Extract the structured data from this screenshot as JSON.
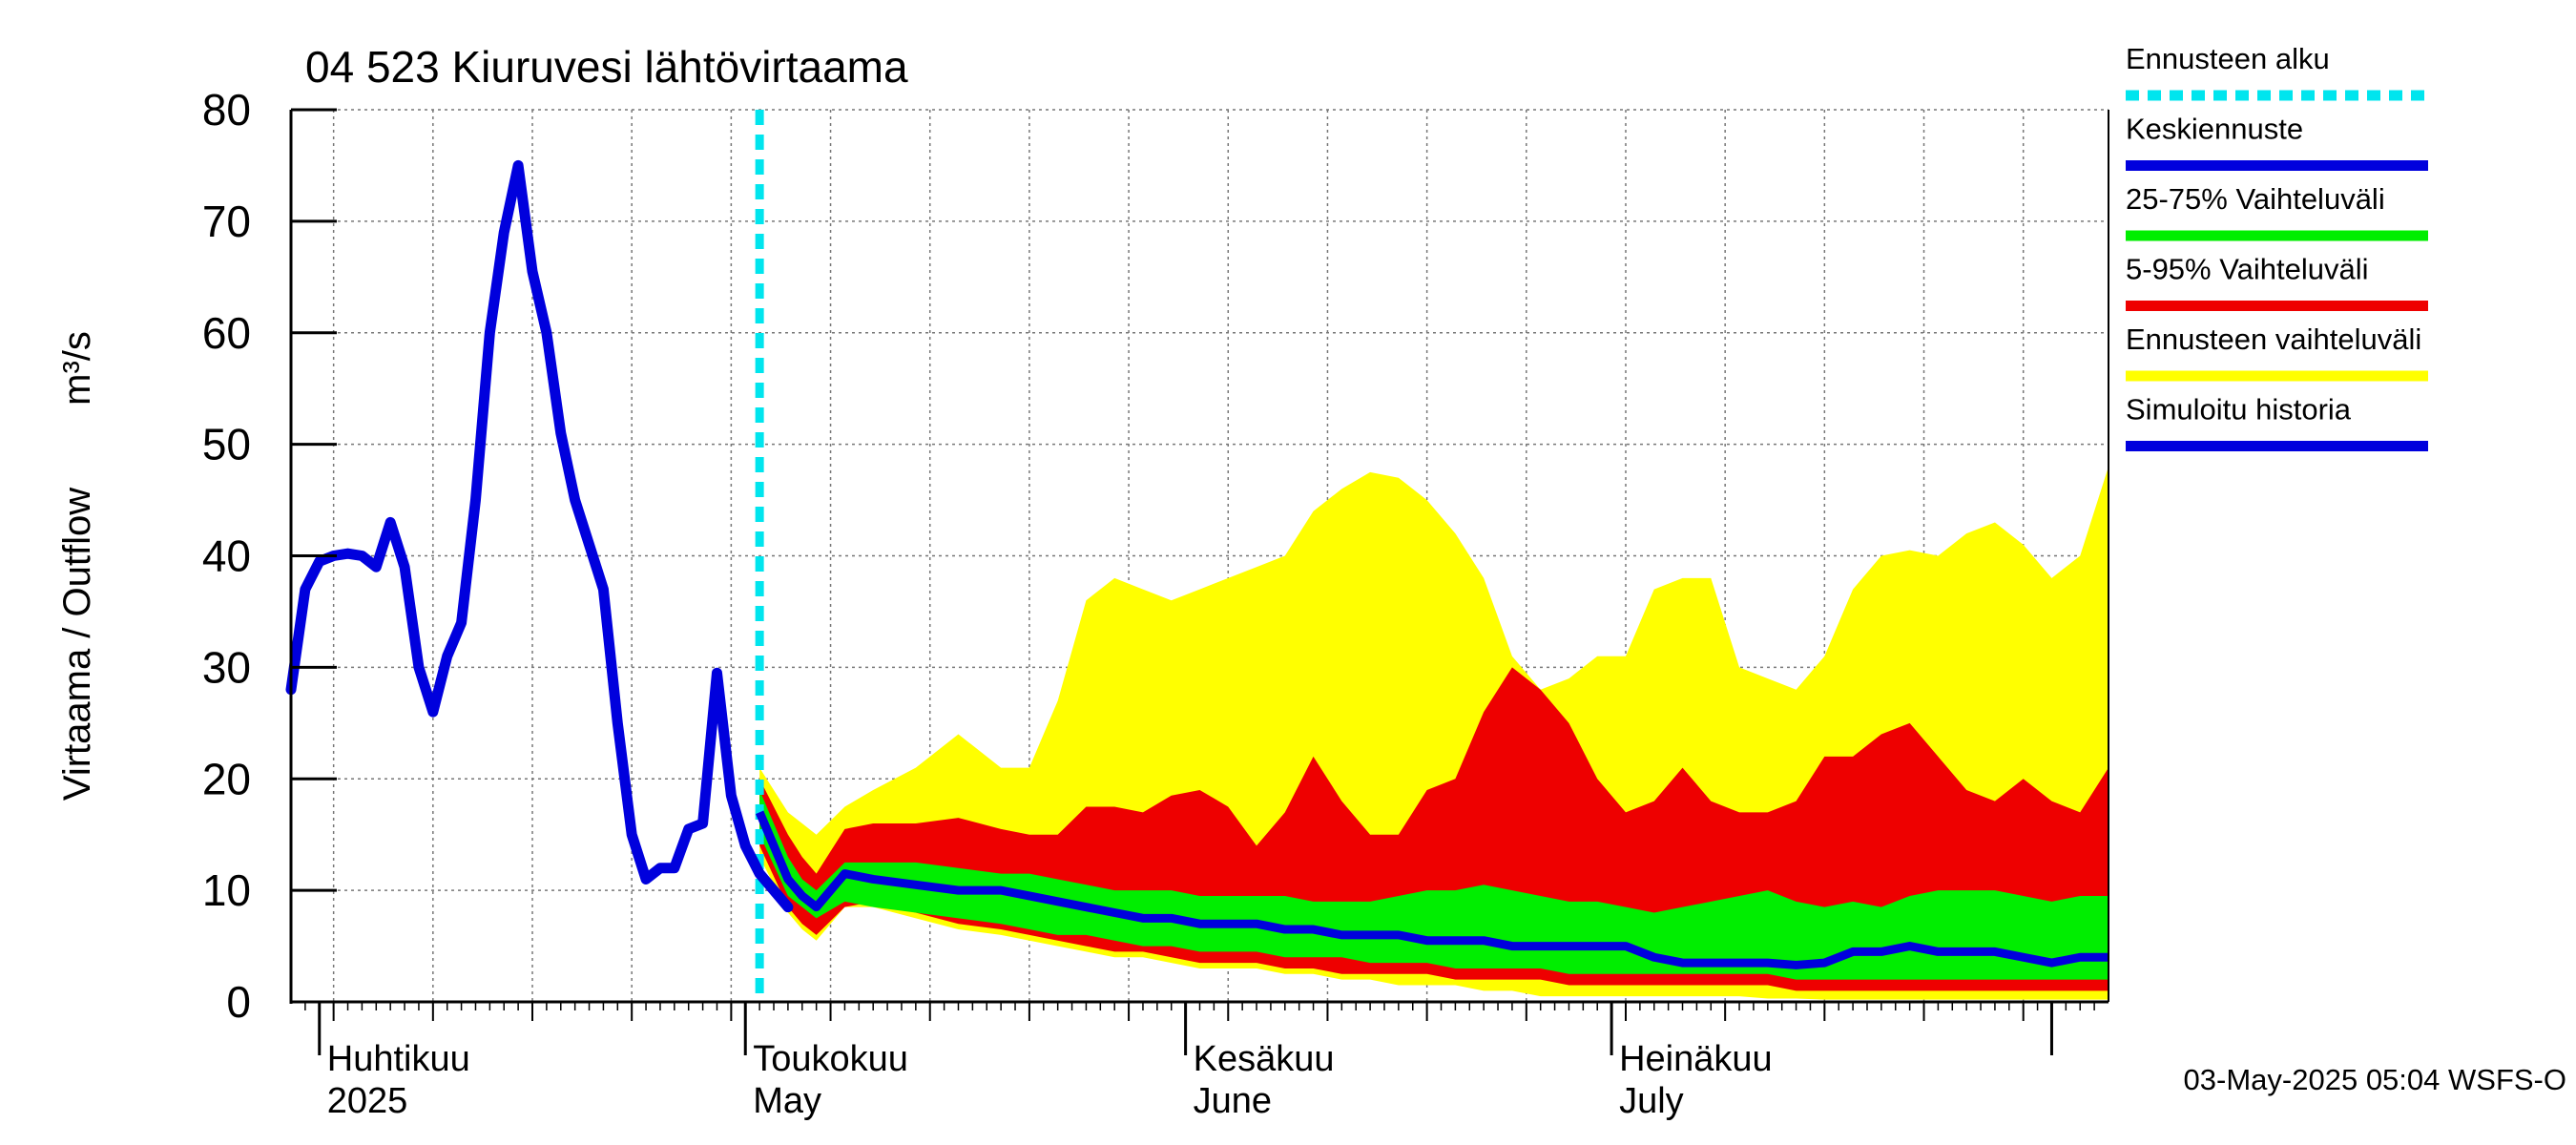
{
  "chart_data": {
    "type": "area",
    "title": "04 523 Kiuruvesi lähtövirtaama",
    "ylabel": "Virtaama / Outflow",
    "yunit": "m³/s",
    "ylim": [
      0,
      80
    ],
    "yticks": [
      0,
      10,
      20,
      30,
      40,
      50,
      60,
      70,
      80
    ],
    "x_range_days": [
      0,
      128
    ],
    "x_axis_note": "day 0 = 30-Mar-2025",
    "forecast_start_day": 33,
    "month_boundaries": [
      2,
      32,
      63,
      93,
      124
    ],
    "month_labels": [
      {
        "day": 2,
        "fi": "Huhtikuu",
        "en": "2025"
      },
      {
        "day": 32,
        "fi": "Toukokuu",
        "en": "May"
      },
      {
        "day": 63,
        "fi": "Kesäkuu",
        "en": "June"
      },
      {
        "day": 93,
        "fi": "Heinäkuu",
        "en": "July"
      }
    ],
    "grid": true,
    "footer": "03-May-2025 05:04 WSFS-O",
    "legend": {
      "placement": "right",
      "items": [
        {
          "label": "Ennusteen alku",
          "color": "#00e5ee",
          "style": "dashed"
        },
        {
          "label": "Keskiennuste",
          "color": "#0000dd",
          "style": "solid"
        },
        {
          "label": "25-75% Vaihteluväli",
          "color": "#00ee00",
          "style": "solid"
        },
        {
          "label": "5-95% Vaihteluväli",
          "color": "#ee0000",
          "style": "solid"
        },
        {
          "label": "Ennusteen vaihteluväli",
          "color": "#ffff00",
          "style": "solid"
        },
        {
          "label": "Simuloitu historia",
          "color": "#0000dd",
          "style": "solid"
        }
      ]
    },
    "history": {
      "name": "Simuloitu historia",
      "x": [
        0,
        1,
        2,
        3,
        4,
        5,
        6,
        7,
        8,
        9,
        10,
        11,
        12,
        13,
        14,
        15,
        16,
        17,
        18,
        19,
        20,
        21,
        22,
        23,
        24,
        25,
        26,
        27,
        28,
        29,
        30,
        31,
        32,
        33,
        34,
        35
      ],
      "y": [
        28,
        37,
        39.5,
        40,
        40.2,
        40,
        39,
        43,
        39,
        30,
        26,
        31,
        34,
        45,
        60,
        69,
        75,
        65.5,
        60,
        51,
        45,
        41,
        37,
        25,
        15,
        11,
        12,
        12,
        15.5,
        16,
        29.5,
        18.5,
        14,
        11.5,
        10,
        8.5
      ]
    },
    "forecast_x": [
      33,
      35,
      36,
      37,
      39,
      41,
      44,
      47,
      50,
      52,
      54,
      56,
      58,
      60,
      62,
      64,
      66,
      68,
      70,
      72,
      74,
      76,
      78,
      80,
      82,
      84,
      86,
      88,
      90,
      92,
      94,
      96,
      98,
      100,
      102,
      104,
      106,
      108,
      110,
      112,
      114,
      116,
      118,
      120,
      122,
      124,
      126,
      128
    ],
    "median": [
      17,
      11,
      9.5,
      8.5,
      11.5,
      11,
      10.5,
      10,
      10,
      9.5,
      9,
      8.5,
      8,
      7.5,
      7.5,
      7,
      7,
      7,
      6.5,
      6.5,
      6,
      6,
      6,
      5.5,
      5.5,
      5.5,
      5,
      5,
      5,
      5,
      5,
      4,
      3.5,
      3.5,
      3.5,
      3.5,
      3.3,
      3.5,
      4.5,
      4.5,
      5,
      4.5,
      4.5,
      4.5,
      4,
      3.5,
      4,
      4
    ],
    "p25": [
      15,
      9.5,
      8.5,
      7.5,
      9,
      8.5,
      8,
      7.5,
      7,
      6.5,
      6,
      6,
      5.5,
      5,
      5,
      4.5,
      4.5,
      4.5,
      4,
      4,
      4,
      3.5,
      3.5,
      3.5,
      3,
      3,
      3,
      3,
      2.5,
      2.5,
      2.5,
      2.5,
      2.5,
      2.5,
      2.5,
      2.5,
      2,
      2,
      2,
      2,
      2,
      2,
      2,
      2,
      2,
      2,
      2,
      2
    ],
    "p75": [
      19,
      13,
      11,
      10,
      12.5,
      12.5,
      12.5,
      12,
      11.5,
      11.5,
      11,
      10.5,
      10,
      10,
      10,
      9.5,
      9.5,
      9.5,
      9.5,
      9,
      9,
      9,
      9.5,
      10,
      10,
      10.5,
      10,
      9.5,
      9,
      9,
      8.5,
      8,
      8.5,
      9,
      9.5,
      10,
      9,
      8.5,
      9,
      8.5,
      9.5,
      10,
      10,
      10,
      9.5,
      9,
      9.5,
      9.5
    ],
    "p05": [
      14,
      8.5,
      7,
      6,
      8.5,
      9,
      8,
      7,
      6.5,
      6,
      5.5,
      5,
      4.5,
      4.5,
      4,
      3.5,
      3.5,
      3.5,
      3,
      3,
      2.5,
      2.5,
      2.5,
      2.5,
      2,
      2,
      2,
      2,
      1.5,
      1.5,
      1.5,
      1.5,
      1.5,
      1.5,
      1.5,
      1.5,
      1,
      1,
      1,
      1,
      1,
      1,
      1,
      1,
      1,
      1,
      1,
      1
    ],
    "p95": [
      20,
      15,
      13,
      11.5,
      15.5,
      16,
      16,
      16.5,
      15.5,
      15,
      15,
      17.5,
      17.5,
      17,
      18.5,
      19,
      17.5,
      14,
      17,
      22,
      18,
      15,
      15,
      19,
      20,
      26,
      30,
      28,
      25,
      20,
      17,
      18,
      21,
      18,
      17,
      17,
      18,
      22,
      22,
      24,
      25,
      22,
      19,
      18,
      20,
      18,
      17,
      21
    ],
    "min": [
      13,
      8,
      6.5,
      5.5,
      8.5,
      8.5,
      7.5,
      6.5,
      6,
      5.5,
      5,
      4.5,
      4,
      4,
      3.5,
      3,
      3,
      3,
      2.5,
      2.5,
      2,
      2,
      1.5,
      1.5,
      1.5,
      1,
      1,
      0.5,
      0.5,
      0.5,
      0.5,
      0.5,
      0.5,
      0.5,
      0.5,
      0.3,
      0.3,
      0.2,
      0.2,
      0.2,
      0.2,
      0.2,
      0.2,
      0.2,
      0.2,
      0.2,
      0.2,
      0.2
    ],
    "max": [
      21,
      17,
      16,
      15,
      17.5,
      19,
      21,
      24,
      21,
      21,
      27,
      36,
      38,
      37,
      36,
      37,
      38,
      39,
      40,
      44,
      46,
      47.5,
      47,
      45,
      42,
      38,
      31,
      28,
      29,
      31,
      31,
      37,
      38,
      38,
      30,
      29,
      28,
      31,
      37,
      40,
      40.5,
      40,
      42,
      43,
      41,
      38,
      40,
      48
    ]
  }
}
